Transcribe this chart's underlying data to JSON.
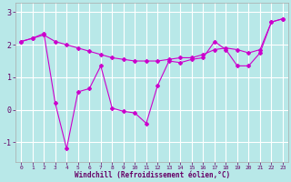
{
  "xlabel": "Windchill (Refroidissement éolien,°C)",
  "x": [
    0,
    1,
    2,
    3,
    4,
    5,
    6,
    7,
    8,
    9,
    10,
    11,
    12,
    13,
    14,
    15,
    16,
    17,
    18,
    19,
    20,
    21,
    22,
    23
  ],
  "series1": [
    2.1,
    2.2,
    2.3,
    2.1,
    2.0,
    1.9,
    1.8,
    1.7,
    1.6,
    1.55,
    1.5,
    1.5,
    1.5,
    1.55,
    1.6,
    1.6,
    1.7,
    1.85,
    1.9,
    1.85,
    1.75,
    1.85,
    2.7,
    2.8
  ],
  "series2": [
    2.1,
    2.2,
    2.35,
    0.2,
    -1.2,
    0.55,
    0.65,
    1.35,
    0.05,
    -0.05,
    -0.1,
    -0.42,
    0.75,
    1.5,
    1.45,
    1.55,
    1.6,
    2.1,
    1.85,
    1.35,
    1.35,
    1.75,
    2.7,
    2.8
  ],
  "color": "#cc00cc",
  "bg_color": "#b8e8e8",
  "grid_color": "#ffffff",
  "yticks": [
    -1,
    0,
    1,
    2,
    3
  ],
  "ylim": [
    -1.6,
    3.3
  ],
  "xlim": [
    -0.5,
    23.5
  ],
  "xlabel_fontsize": 5.5,
  "ytick_fontsize": 6.0,
  "xtick_fontsize": 4.5
}
